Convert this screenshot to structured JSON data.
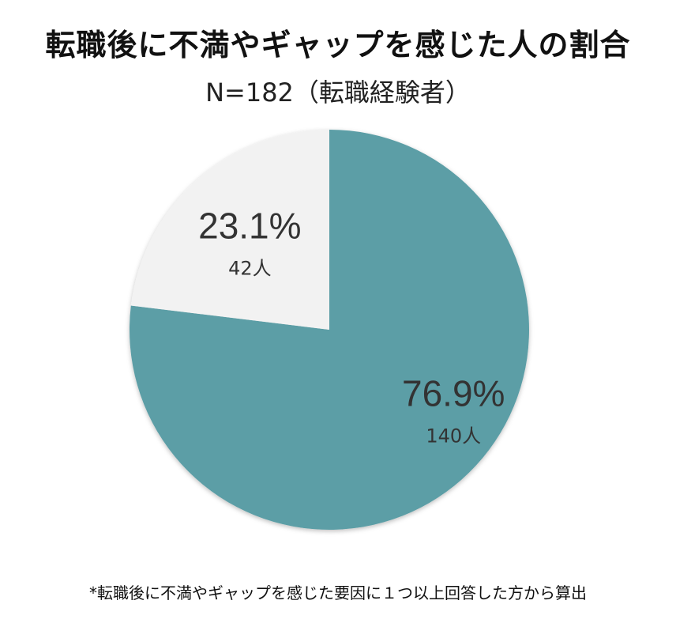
{
  "chart_data": {
    "type": "pie",
    "title": "転職後に不満やギャップを感じた人の割合",
    "subtitle": "N=182（転職経験者）",
    "slices": [
      {
        "percent_label": "76.9%",
        "count_label": "140人",
        "value": 140,
        "color": "#5c9ea6"
      },
      {
        "percent_label": "23.1%",
        "count_label": "42人",
        "value": 42,
        "color": "#f2f2f2"
      }
    ],
    "start": "12 o'clock",
    "direction": "clockwise",
    "footnote": "*転職後に不満やギャップを感じた要因に１つ以上回答した方から算出"
  }
}
